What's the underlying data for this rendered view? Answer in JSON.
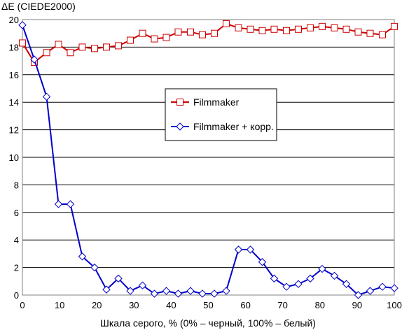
{
  "chart_data": {
    "type": "line",
    "title": "",
    "ylabel": "ΔE (CIEDE2000)",
    "xlabel": "Шкала серого, % (0% – черный, 100% – белый)",
    "xlim": [
      0,
      100
    ],
    "ylim": [
      0,
      20
    ],
    "x_ticks": [
      0,
      10,
      20,
      30,
      40,
      50,
      60,
      70,
      80,
      90,
      100
    ],
    "y_ticks": [
      0,
      2,
      4,
      6,
      8,
      10,
      12,
      14,
      16,
      18,
      20
    ],
    "grid": "horizontal",
    "legend_position": "center-right",
    "x": [
      0,
      3.2,
      6.5,
      9.7,
      12.9,
      16.1,
      19.4,
      22.6,
      25.8,
      29,
      32.3,
      35.5,
      38.7,
      41.9,
      45.2,
      48.4,
      51.6,
      54.8,
      58.1,
      61.3,
      64.5,
      67.7,
      71,
      74.2,
      77.4,
      80.6,
      83.9,
      87.1,
      90.3,
      93.5,
      96.8,
      100
    ],
    "series": [
      {
        "name": "Filmmaker",
        "color": "#cc0000",
        "marker": "square",
        "values": [
          18.3,
          16.9,
          17.6,
          18.2,
          17.6,
          18.0,
          17.9,
          18.0,
          18.1,
          18.5,
          19.0,
          18.6,
          18.7,
          19.1,
          19.1,
          18.9,
          19.0,
          19.7,
          19.4,
          19.3,
          19.2,
          19.3,
          19.2,
          19.3,
          19.4,
          19.5,
          19.4,
          19.3,
          19.1,
          19.0,
          18.9,
          19.5
        ]
      },
      {
        "name": "Filmmaker + корр.",
        "color": "#0000cc",
        "marker": "diamond",
        "values": [
          19.6,
          17.1,
          14.4,
          6.6,
          6.6,
          2.8,
          2.0,
          0.4,
          1.2,
          0.3,
          0.7,
          0.1,
          0.3,
          0.1,
          0.3,
          0.1,
          0.1,
          0.3,
          3.3,
          3.3,
          2.4,
          1.2,
          0.6,
          0.8,
          1.2,
          1.9,
          1.4,
          0.8,
          0.0,
          0.3,
          0.6,
          0.5
        ]
      }
    ]
  }
}
